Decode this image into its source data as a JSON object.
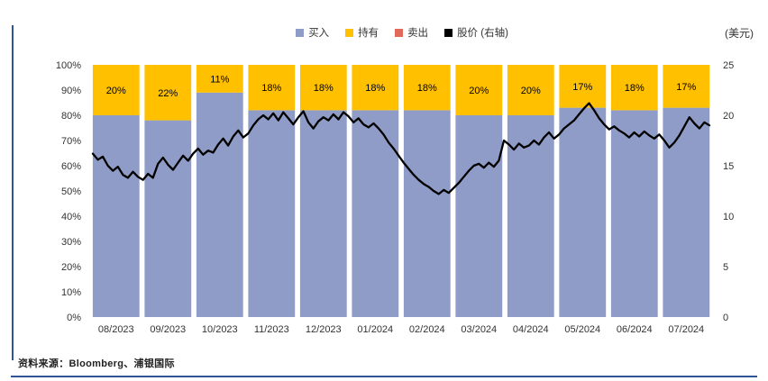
{
  "legend": [
    {
      "label": "买入",
      "color": "#8e9cc7"
    },
    {
      "label": "持有",
      "color": "#ffc000"
    },
    {
      "label": "卖出",
      "color": "#e0695a"
    },
    {
      "label": "股价 (右轴)",
      "color": "#000000"
    }
  ],
  "source": "资料来源：Bloomberg、浦银国际",
  "accent_color": "#2f5597",
  "chart_data": {
    "type": "bar",
    "subtype": "stacked-bar-with-line",
    "categories": [
      "08/2023",
      "09/2023",
      "10/2023",
      "11/2023",
      "12/2023",
      "01/2024",
      "02/2024",
      "03/2024",
      "04/2024",
      "05/2024",
      "06/2024",
      "07/2024"
    ],
    "bar_series": [
      {
        "name": "买入",
        "color": "#8e9cc7",
        "values": [
          80,
          78,
          89,
          82,
          82,
          82,
          82,
          80,
          80,
          83,
          82,
          83
        ]
      },
      {
        "name": "持有",
        "color": "#ffc000",
        "values": [
          20,
          22,
          11,
          18,
          18,
          18,
          18,
          20,
          20,
          17,
          18,
          17
        ],
        "labels": [
          "20%",
          "22%",
          "11%",
          "18%",
          "18%",
          "18%",
          "18%",
          "20%",
          "20%",
          "17%",
          "18%",
          "17%"
        ]
      },
      {
        "name": "卖出",
        "color": "#e0695a",
        "values": [
          0,
          0,
          0,
          0,
          0,
          0,
          0,
          0,
          0,
          0,
          0,
          0
        ]
      }
    ],
    "line_series": {
      "name": "股价 (右轴)",
      "color": "#000000",
      "axis": "right",
      "values": [
        16.2,
        15.6,
        15.9,
        15.0,
        14.5,
        14.9,
        14.1,
        13.8,
        14.4,
        13.9,
        13.6,
        14.2,
        13.8,
        15.2,
        15.8,
        15.1,
        14.6,
        15.3,
        16.0,
        15.5,
        16.2,
        16.7,
        16.1,
        16.5,
        16.3,
        17.1,
        17.7,
        17.0,
        17.9,
        18.5,
        17.8,
        18.2,
        19.0,
        19.6,
        20.0,
        19.6,
        20.2,
        19.5,
        20.3,
        19.7,
        19.1,
        19.8,
        20.4,
        19.3,
        18.7,
        19.4,
        19.8,
        19.5,
        20.1,
        19.6,
        20.3,
        19.9,
        19.3,
        19.7,
        19.1,
        18.8,
        19.2,
        18.7,
        18.1,
        17.3,
        16.7,
        16.0,
        15.3,
        14.7,
        14.1,
        13.6,
        13.2,
        12.9,
        12.5,
        12.2,
        12.6,
        12.3,
        12.8,
        13.3,
        13.9,
        14.5,
        15.0,
        15.2,
        14.8,
        15.3,
        14.9,
        15.5,
        17.5,
        17.1,
        16.6,
        17.2,
        16.8,
        17.0,
        17.5,
        17.1,
        17.8,
        18.3,
        17.7,
        18.1,
        18.7,
        19.1,
        19.5,
        20.1,
        20.7,
        21.2,
        20.5,
        19.7,
        19.1,
        18.6,
        18.9,
        18.5,
        18.2,
        17.8,
        18.3,
        17.9,
        18.4,
        18.0,
        17.7,
        18.1,
        17.5,
        16.8,
        17.3,
        18.0,
        18.9,
        19.8,
        19.2,
        18.7,
        19.3,
        19.0
      ]
    },
    "left_axis": {
      "min": 0,
      "max": 100,
      "ticks": [
        "0%",
        "10%",
        "20%",
        "30%",
        "40%",
        "50%",
        "60%",
        "70%",
        "80%",
        "90%",
        "100%"
      ]
    },
    "right_axis": {
      "min": 0,
      "max": 25,
      "ticks": [
        "0",
        "5",
        "10",
        "15",
        "20",
        "25"
      ],
      "unit": "(美元)"
    },
    "grid": false,
    "legend_position": "top-center"
  }
}
